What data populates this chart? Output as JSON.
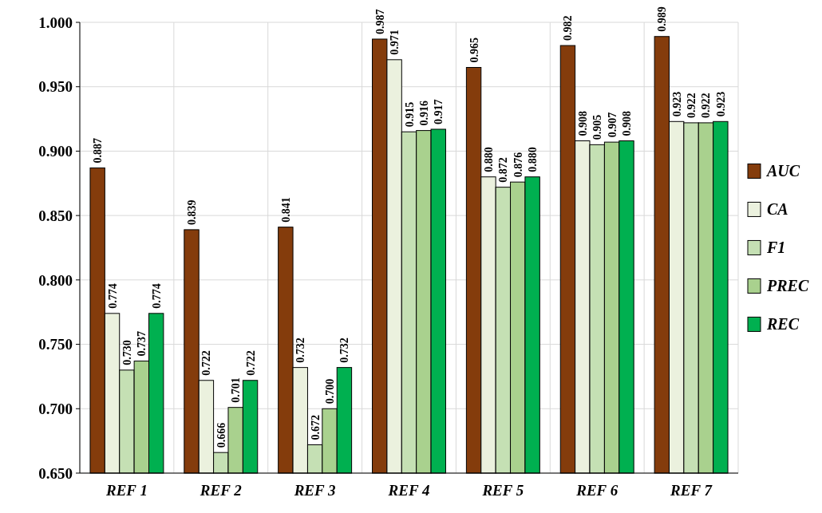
{
  "chart_data": {
    "type": "bar",
    "categories": [
      "REF 1",
      "REF 2",
      "REF 3",
      "REF 4",
      "REF 5",
      "REF 6",
      "REF 7"
    ],
    "series": [
      {
        "name": "AUC",
        "color": "#843c0c",
        "values": [
          0.887,
          0.839,
          0.841,
          0.987,
          0.965,
          0.982,
          0.989
        ],
        "value_labels": [
          "0.887",
          "0.839",
          "0.841",
          "0.987",
          "0.965",
          "0.982",
          "0.989"
        ]
      },
      {
        "name": "CA",
        "color": "#ebf1de",
        "values": [
          0.774,
          0.722,
          0.732,
          0.971,
          0.88,
          0.908,
          0.923
        ],
        "value_labels": [
          "0.774",
          "0.722",
          "0.732",
          "0.971",
          "0.880",
          "0.908",
          "0.923"
        ]
      },
      {
        "name": "F1",
        "color": "#c5e0b4",
        "values": [
          0.73,
          0.666,
          0.672,
          0.915,
          0.872,
          0.905,
          0.922
        ],
        "value_labels": [
          "0.730",
          "0.666",
          "0.672",
          "0.915",
          "0.872",
          "0.905",
          "0.922"
        ]
      },
      {
        "name": "PREC",
        "color": "#a9d18e",
        "values": [
          0.737,
          0.701,
          0.7,
          0.916,
          0.876,
          0.907,
          0.922
        ],
        "value_labels": [
          "0.737",
          "0.701",
          "0.700",
          "0.916",
          "0.876",
          "0.907",
          "0.922"
        ]
      },
      {
        "name": "REC",
        "color": "#00b050",
        "values": [
          0.774,
          0.722,
          0.732,
          0.917,
          0.88,
          0.908,
          0.923
        ],
        "value_labels": [
          "0.774",
          "0.722",
          "0.732",
          "0.917",
          "0.880",
          "0.908",
          "0.923"
        ]
      }
    ],
    "ylim": [
      0.65,
      1.0
    ],
    "yticks": [
      {
        "value": 0.65,
        "label": "0.650"
      },
      {
        "value": 0.7,
        "label": "0.700"
      },
      {
        "value": 0.75,
        "label": "0.750"
      },
      {
        "value": 0.8,
        "label": "0.800"
      },
      {
        "value": 0.85,
        "label": "0.850"
      },
      {
        "value": 0.9,
        "label": "0.900"
      },
      {
        "value": 0.95,
        "label": "0.950"
      },
      {
        "value": 1.0,
        "label": "1.000"
      }
    ],
    "grid": true,
    "legend": "right"
  }
}
